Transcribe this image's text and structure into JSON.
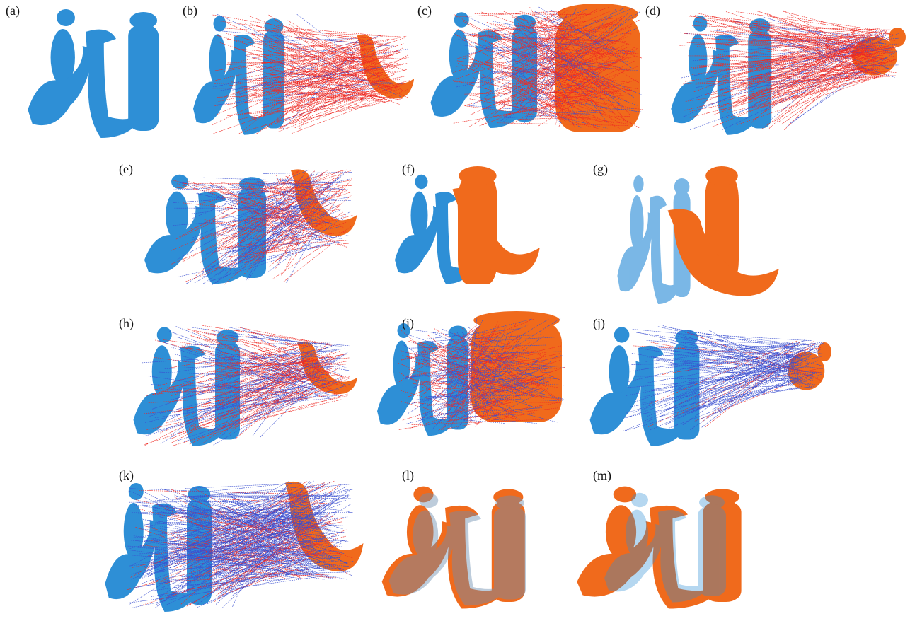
{
  "panels": [
    {
      "label": "(a)"
    },
    {
      "label": "(b)"
    },
    {
      "label": "(c)"
    },
    {
      "label": "(d)"
    },
    {
      "label": "(e)"
    },
    {
      "label": "(f)"
    },
    {
      "label": "(g)"
    },
    {
      "label": "(h)"
    },
    {
      "label": "(i)"
    },
    {
      "label": "(j)"
    },
    {
      "label": "(k)"
    },
    {
      "label": "(l)"
    },
    {
      "label": "(m)"
    }
  ]
}
